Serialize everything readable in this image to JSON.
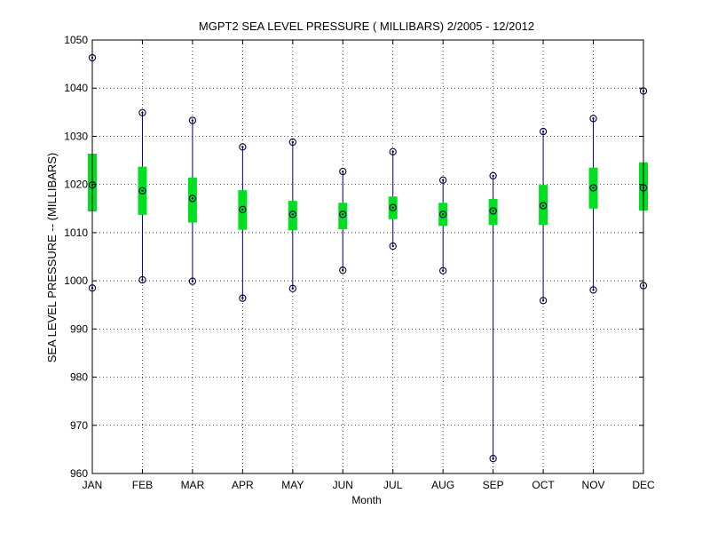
{
  "chart_data": {
    "type": "box",
    "title": "MGPT2  SEA LEVEL PRESSURE ( MILLIBARS) 2/2005 - 12/2012",
    "xlabel": "Month",
    "ylabel": "SEA LEVEL PRESSURE -- (MILLIBARS)",
    "ylim": [
      960,
      1050
    ],
    "yticks": [
      960,
      970,
      980,
      990,
      1000,
      1010,
      1020,
      1030,
      1040,
      1050
    ],
    "grid": true,
    "categories": [
      "JAN",
      "FEB",
      "MAR",
      "APR",
      "MAY",
      "JUN",
      "JUL",
      "AUG",
      "SEP",
      "OCT",
      "NOV",
      "DEC"
    ],
    "series": [
      {
        "max": [
          1046.3,
          1034.9,
          1033.3,
          1027.8,
          1028.8,
          1022.7,
          1026.8,
          1020.9,
          1021.8,
          1031.0,
          1033.7,
          1039.4
        ]
      },
      {
        "upper": [
          1026.4,
          1023.7,
          1021.4,
          1018.8,
          1016.6,
          1016.2,
          1017.5,
          1016.2,
          1017.0,
          1019.9,
          1023.5,
          1024.6
        ]
      },
      {
        "mean": [
          1019.9,
          1018.7,
          1017.1,
          1014.8,
          1013.8,
          1013.8,
          1015.2,
          1013.8,
          1014.5,
          1015.6,
          1019.3,
          1019.3
        ]
      },
      {
        "lower": [
          1014.4,
          1013.7,
          1012.1,
          1010.6,
          1010.5,
          1010.7,
          1012.8,
          1011.4,
          1011.6,
          1011.6,
          1015.0,
          1014.6
        ]
      },
      {
        "min": [
          998.5,
          1000.2,
          999.9,
          996.4,
          998.4,
          1002.2,
          1007.2,
          1002.1,
          963.1,
          995.9,
          998.1,
          999.0
        ]
      }
    ],
    "colors": {
      "whisker": "#000080",
      "box": "#00e020",
      "marker": "#000040",
      "grid": "#000000"
    }
  }
}
